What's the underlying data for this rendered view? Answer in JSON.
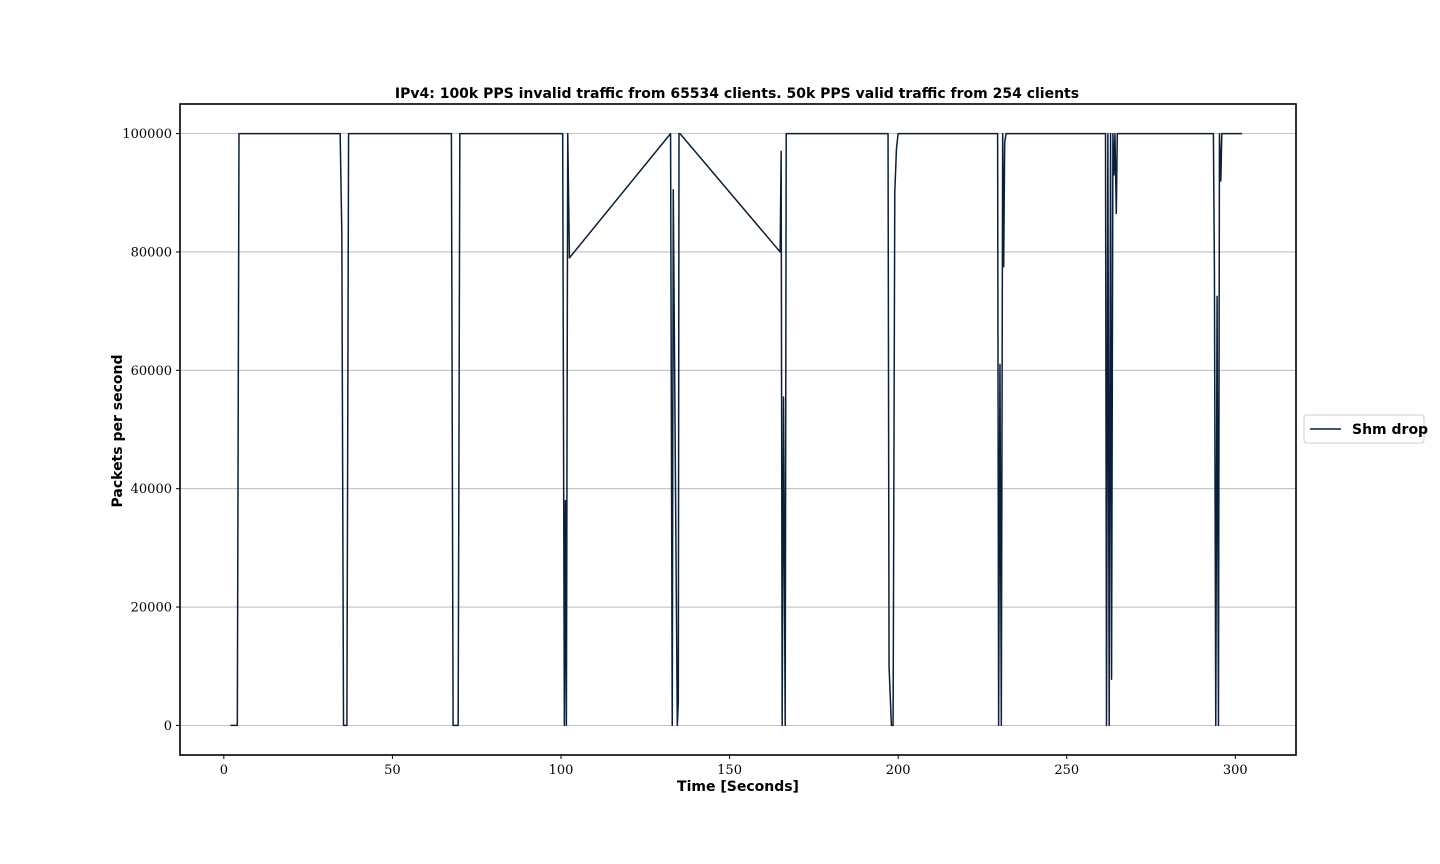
{
  "chart_data": {
    "type": "line",
    "title": "IPv4: 100k PPS invalid traffic from 65534 clients. 50k PPS valid traffic from 254 clients",
    "xlabel": "Time [Seconds]",
    "ylabel": "Packets per second",
    "xlim": [
      -13,
      318
    ],
    "ylim": [
      -5000,
      105000
    ],
    "xticks": [
      0,
      50,
      100,
      150,
      200,
      250,
      300
    ],
    "yticks": [
      0,
      20000,
      40000,
      60000,
      80000,
      100000
    ],
    "grid": "horizontal",
    "legend": {
      "placement": "outside-right",
      "entries": [
        "Shm drop"
      ]
    },
    "colors": {
      "series": "#0b1f3a",
      "grid": "#b0b0b0"
    },
    "series": [
      {
        "name": "Shm drop",
        "x": [
          2,
          4,
          4.5,
          5,
          34.5,
          35,
          35.5,
          36.5,
          37,
          67.5,
          68,
          69.5,
          70,
          100.5,
          101,
          101.3,
          101.6,
          102,
          102.5,
          132.5,
          133,
          133.3,
          134.5,
          134.8,
          135,
          135.3,
          165,
          165.3,
          165.6,
          166,
          166.5,
          166.8,
          167,
          197,
          197.3,
          198,
          198.5,
          199,
          199.5,
          200,
          229.5,
          229.8,
          230.2,
          230.6,
          231,
          231.3,
          231.6,
          232,
          261.5,
          261.8,
          262.2,
          262.6,
          263,
          263.3,
          263.7,
          264,
          264.3,
          264.7,
          265,
          265.3,
          265.7,
          266,
          293.5,
          293.8,
          294.2,
          294.6,
          295,
          295.3,
          295.7,
          296,
          296.3,
          297,
          302
        ],
        "y": [
          0,
          0,
          100000,
          100000,
          100000,
          83000,
          0,
          0,
          100000,
          100000,
          0,
          0,
          100000,
          100000,
          0,
          38000,
          0,
          100000,
          79000,
          100000,
          0,
          90500,
          0,
          4000,
          100000,
          100000,
          80000,
          97000,
          0,
          55500,
          0,
          100000,
          100000,
          100000,
          10000,
          0,
          0,
          90000,
          97500,
          100000,
          100000,
          0,
          61000,
          0,
          100000,
          77500,
          98500,
          100000,
          100000,
          0,
          100000,
          0,
          100000,
          7800,
          100000,
          93000,
          100000,
          86500,
          100000,
          100000,
          100000,
          100000,
          100000,
          77000,
          0,
          72500,
          0,
          100000,
          92000,
          100000,
          100000,
          100000,
          100000
        ]
      }
    ]
  }
}
